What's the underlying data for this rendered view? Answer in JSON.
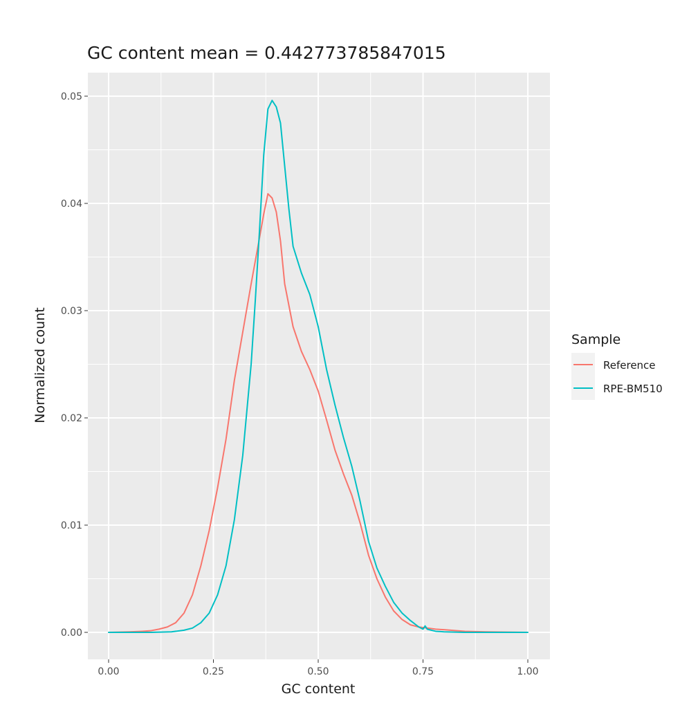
{
  "chart_data": {
    "type": "line",
    "title": "GC content mean = 0.442773785847015",
    "xlabel": "GC content",
    "ylabel": "Normalized count",
    "xlim": [
      0,
      1
    ],
    "ylim": [
      0,
      0.05
    ],
    "x_ticks": [
      "0.00",
      "0.25",
      "0.50",
      "0.75",
      "1.00"
    ],
    "y_ticks": [
      "0.00",
      "0.01",
      "0.02",
      "0.03",
      "0.04",
      "0.05"
    ],
    "grid": true,
    "legend": {
      "title": "Sample",
      "position": "right"
    },
    "series": [
      {
        "name": "Reference",
        "color": "#F8766D",
        "points": [
          [
            0.0,
            0.0
          ],
          [
            0.05,
            5e-05
          ],
          [
            0.08,
            0.0001
          ],
          [
            0.1,
            0.00015
          ],
          [
            0.12,
            0.0003
          ],
          [
            0.14,
            0.0005
          ],
          [
            0.16,
            0.0009
          ],
          [
            0.18,
            0.0018
          ],
          [
            0.2,
            0.0035
          ],
          [
            0.22,
            0.0062
          ],
          [
            0.24,
            0.0095
          ],
          [
            0.26,
            0.0135
          ],
          [
            0.28,
            0.018
          ],
          [
            0.3,
            0.0235
          ],
          [
            0.32,
            0.028
          ],
          [
            0.34,
            0.0325
          ],
          [
            0.36,
            0.0368
          ],
          [
            0.37,
            0.039
          ],
          [
            0.38,
            0.0409
          ],
          [
            0.39,
            0.0405
          ],
          [
            0.4,
            0.0392
          ],
          [
            0.41,
            0.0365
          ],
          [
            0.42,
            0.0325
          ],
          [
            0.44,
            0.0285
          ],
          [
            0.46,
            0.0262
          ],
          [
            0.48,
            0.0245
          ],
          [
            0.5,
            0.0225
          ],
          [
            0.52,
            0.0198
          ],
          [
            0.54,
            0.017
          ],
          [
            0.56,
            0.0148
          ],
          [
            0.58,
            0.0128
          ],
          [
            0.6,
            0.0102
          ],
          [
            0.62,
            0.0072
          ],
          [
            0.64,
            0.005
          ],
          [
            0.66,
            0.0033
          ],
          [
            0.68,
            0.002
          ],
          [
            0.7,
            0.0012
          ],
          [
            0.72,
            0.0007
          ],
          [
            0.74,
            0.0005
          ],
          [
            0.76,
            0.0004
          ],
          [
            0.78,
            0.0003
          ],
          [
            0.8,
            0.00025
          ],
          [
            0.85,
            0.0001
          ],
          [
            0.9,
            5e-05
          ],
          [
            1.0,
            0.0
          ]
        ]
      },
      {
        "name": "RPE-BM510",
        "color": "#00BFC4",
        "points": [
          [
            0.0,
            0.0
          ],
          [
            0.1,
            0.0
          ],
          [
            0.15,
            5e-05
          ],
          [
            0.18,
            0.0002
          ],
          [
            0.2,
            0.0004
          ],
          [
            0.22,
            0.0009
          ],
          [
            0.24,
            0.0018
          ],
          [
            0.26,
            0.0035
          ],
          [
            0.28,
            0.0062
          ],
          [
            0.3,
            0.0105
          ],
          [
            0.32,
            0.0165
          ],
          [
            0.34,
            0.025
          ],
          [
            0.35,
            0.031
          ],
          [
            0.36,
            0.0375
          ],
          [
            0.37,
            0.0445
          ],
          [
            0.38,
            0.0488
          ],
          [
            0.39,
            0.0496
          ],
          [
            0.4,
            0.049
          ],
          [
            0.41,
            0.0475
          ],
          [
            0.42,
            0.0435
          ],
          [
            0.43,
            0.0395
          ],
          [
            0.44,
            0.036
          ],
          [
            0.46,
            0.0335
          ],
          [
            0.48,
            0.0315
          ],
          [
            0.5,
            0.0285
          ],
          [
            0.52,
            0.0245
          ],
          [
            0.54,
            0.0212
          ],
          [
            0.56,
            0.0182
          ],
          [
            0.58,
            0.0155
          ],
          [
            0.6,
            0.0122
          ],
          [
            0.62,
            0.0085
          ],
          [
            0.64,
            0.006
          ],
          [
            0.66,
            0.0043
          ],
          [
            0.68,
            0.0028
          ],
          [
            0.7,
            0.0018
          ],
          [
            0.72,
            0.0011
          ],
          [
            0.74,
            0.0005
          ],
          [
            0.75,
            0.0003
          ],
          [
            0.755,
            0.0006
          ],
          [
            0.76,
            0.0003
          ],
          [
            0.78,
            0.0001
          ],
          [
            0.8,
            5e-05
          ],
          [
            0.85,
            0.0
          ],
          [
            1.0,
            0.0
          ]
        ]
      }
    ]
  }
}
